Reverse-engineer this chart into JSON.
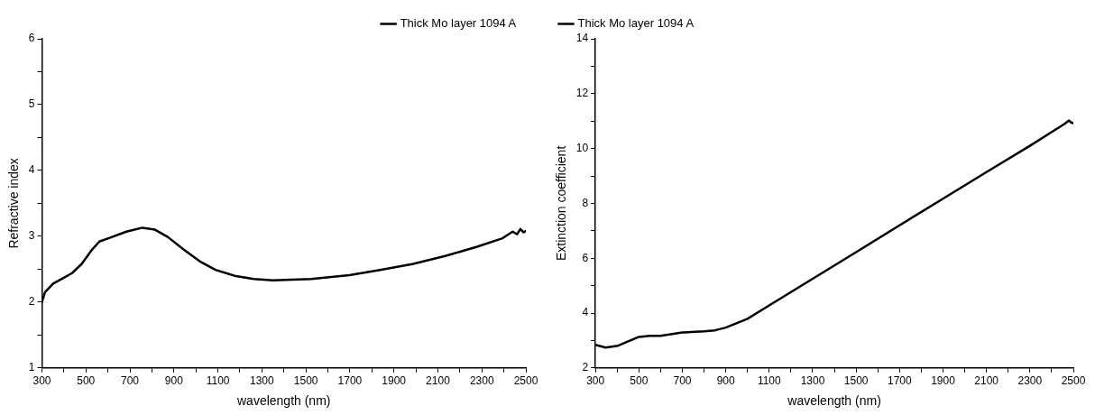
{
  "chart_data": [
    {
      "type": "line",
      "xlabel": "wavelength (nm)",
      "ylabel": "Refractive index",
      "legend": "top right",
      "grid": false,
      "marker": "none",
      "line_style": "solid",
      "xlim": [
        300,
        2500
      ],
      "ylim": [
        1,
        6
      ],
      "xticks": [
        300,
        {
          "value": 400,
          "label": null
        },
        500,
        {
          "value": 600,
          "label": null
        },
        700,
        {
          "value": 800,
          "label": null
        },
        900,
        {
          "value": 1000,
          "label": null
        },
        1100,
        {
          "value": 1200,
          "label": null
        },
        1300,
        {
          "value": 1400,
          "label": null
        },
        1500,
        {
          "value": 1600,
          "label": null
        },
        1700,
        {
          "value": 1800,
          "label": null
        },
        1900,
        {
          "value": 2000,
          "label": null
        },
        2100,
        {
          "value": 2200,
          "label": null
        },
        2300,
        {
          "value": 2400,
          "label": null
        },
        2500
      ],
      "yticks": [
        1,
        {
          "value": 1.5,
          "label": null
        },
        2,
        {
          "value": 2.5,
          "label": null
        },
        3,
        {
          "value": 3.5,
          "label": null
        },
        4,
        {
          "value": 4.5,
          "label": null
        },
        5,
        {
          "value": 5.5,
          "label": null
        },
        6
      ],
      "series": [
        {
          "name": "Thick Mo layer 1094 A",
          "color": "#000000",
          "x": [
            300,
            314,
            351,
            394,
            437,
            481,
            524,
            561,
            611,
            684,
            756,
            814,
            872,
            944,
            1017,
            1089,
            1176,
            1263,
            1350,
            1524,
            1698,
            1843,
            1988,
            2133,
            2278,
            2394,
            2440,
            2460,
            2475,
            2490,
            2500
          ],
          "values": [
            2.0,
            2.15,
            2.28,
            2.36,
            2.44,
            2.58,
            2.78,
            2.92,
            2.98,
            3.07,
            3.13,
            3.1,
            2.99,
            2.8,
            2.62,
            2.49,
            2.4,
            2.35,
            2.33,
            2.35,
            2.41,
            2.49,
            2.58,
            2.7,
            2.84,
            2.97,
            3.07,
            3.03,
            3.11,
            3.06,
            3.08
          ]
        }
      ]
    },
    {
      "type": "line",
      "xlabel": "wavelength (nm)",
      "ylabel": "Extinction coefficient",
      "legend": "top left",
      "grid": false,
      "marker": "none",
      "line_style": "solid",
      "xlim": [
        300,
        2500
      ],
      "ylim": [
        2,
        14
      ],
      "xticks": [
        300,
        {
          "value": 400,
          "label": null
        },
        500,
        {
          "value": 600,
          "label": null
        },
        700,
        {
          "value": 800,
          "label": null
        },
        900,
        {
          "value": 1000,
          "label": null
        },
        1100,
        {
          "value": 1200,
          "label": null
        },
        1300,
        {
          "value": 1400,
          "label": null
        },
        1500,
        {
          "value": 1600,
          "label": null
        },
        1700,
        {
          "value": 1800,
          "label": null
        },
        1900,
        {
          "value": 2000,
          "label": null
        },
        2100,
        {
          "value": 2200,
          "label": null
        },
        2300,
        {
          "value": 2400,
          "label": null
        },
        2500
      ],
      "yticks": [
        2,
        {
          "value": 3,
          "label": null
        },
        4,
        {
          "value": 5,
          "label": null
        },
        6,
        {
          "value": 7,
          "label": null
        },
        8,
        {
          "value": 9,
          "label": null
        },
        10,
        {
          "value": 11,
          "label": null
        },
        12,
        {
          "value": 13,
          "label": null
        },
        14
      ],
      "series": [
        {
          "name": "Thick Mo layer 1094 A",
          "color": "#000000",
          "x": [
            300,
            347,
            404,
            500,
            550,
            600,
            700,
            800,
            850,
            900,
            1000,
            1100,
            1300,
            1500,
            1700,
            1900,
            2100,
            2300,
            2460,
            2480,
            2490,
            2500
          ],
          "values": [
            2.84,
            2.74,
            2.81,
            3.13,
            3.17,
            3.17,
            3.29,
            3.33,
            3.37,
            3.47,
            3.79,
            4.28,
            5.25,
            6.22,
            7.2,
            8.17,
            9.14,
            10.1,
            10.9,
            11.02,
            10.95,
            10.92
          ]
        }
      ]
    }
  ]
}
